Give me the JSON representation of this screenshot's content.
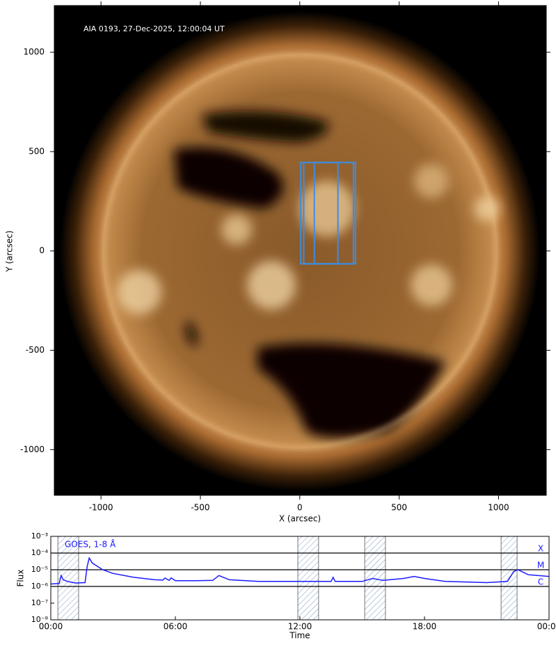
{
  "chart_data": [
    {
      "type": "image",
      "title": "AIA 0193, 27-Dec-2025, 12:00:04 UT",
      "xlabel": "X (arcsec)",
      "ylabel": "Y (arcsec)",
      "xlim": [
        -1235,
        1240
      ],
      "ylim": [
        -1230,
        1235
      ],
      "xticks": [
        -1000,
        -500,
        0,
        500,
        1000
      ],
      "yticks": [
        -1000,
        -500,
        0,
        500,
        1000
      ],
      "regions": [
        {
          "x": [
            5,
            280
          ],
          "y": [
            -65,
            445
          ]
        },
        {
          "x": [
            20,
            270
          ],
          "y": [
            -65,
            445
          ]
        },
        {
          "x": [
            73,
            192
          ],
          "y": [
            -65,
            445
          ]
        }
      ],
      "color": "#3a8ee6"
    },
    {
      "type": "line",
      "xlabel": "Time",
      "ylabel": "Flux",
      "log_y": true,
      "x": [
        0,
        0.4,
        0.5,
        0.6,
        0.8,
        1.2,
        1.65,
        1.75,
        1.85,
        2.0,
        2.5,
        3.0,
        4.0,
        5.0,
        5.4,
        5.5,
        5.7,
        5.8,
        6.0,
        7.0,
        7.8,
        8.1,
        8.6,
        10,
        12,
        13.5,
        13.6,
        13.7,
        15,
        15.5,
        16,
        17,
        17.5,
        18,
        19,
        21,
        22,
        22.3,
        22.5,
        23,
        24
      ],
      "series": [
        {
          "name": "GOES, 1-8 Å",
          "color": "#1a1aff",
          "values": [
            1.4e-06,
            1.5e-06,
            4.5e-06,
            2.5e-06,
            2e-06,
            1.6e-06,
            1.7e-06,
            1.5e-05,
            5e-05,
            2.5e-05,
            1e-05,
            6e-06,
            3.5e-06,
            2.5e-06,
            2.4e-06,
            3.2e-06,
            2.3e-06,
            3.3e-06,
            2.2e-06,
            2.2e-06,
            2.3e-06,
            4.5e-06,
            2.5e-06,
            2e-06,
            2e-06,
            2e-06,
            3.5e-06,
            2e-06,
            2e-06,
            3e-06,
            2.3e-06,
            3e-06,
            4e-06,
            3e-06,
            2e-06,
            1.7e-06,
            2e-06,
            8e-06,
            1e-05,
            5e-06,
            4e-06
          ]
        }
      ],
      "xlim": [
        0,
        24
      ],
      "xticks": [
        {
          "value": 0,
          "label": "00:00"
        },
        {
          "value": 6,
          "label": "06:00"
        },
        {
          "value": 12,
          "label": "12:00"
        },
        {
          "value": 18,
          "label": "18:00"
        },
        {
          "value": 24,
          "label": "00:00"
        }
      ],
      "ylim": [
        1e-08,
        0.001
      ],
      "yticks": [
        {
          "value": 0.001,
          "label": "10⁻³"
        },
        {
          "value": 0.0001,
          "label": "10⁻⁴"
        },
        {
          "value": 1e-05,
          "label": "10⁻⁵"
        },
        {
          "value": 1e-06,
          "label": "10⁻⁶"
        },
        {
          "value": 1e-07,
          "label": "10⁻⁷"
        },
        {
          "value": 1e-08,
          "label": "10⁻⁸"
        }
      ],
      "flare_classes": [
        {
          "label": "X",
          "value": 0.0001
        },
        {
          "label": "M",
          "value": 1e-05
        },
        {
          "label": "C",
          "value": 1e-06
        }
      ],
      "intervals": [
        [
          0.34,
          1.34
        ],
        [
          11.9,
          12.9
        ],
        [
          15.12,
          16.12
        ],
        [
          21.69,
          22.46
        ]
      ]
    }
  ]
}
